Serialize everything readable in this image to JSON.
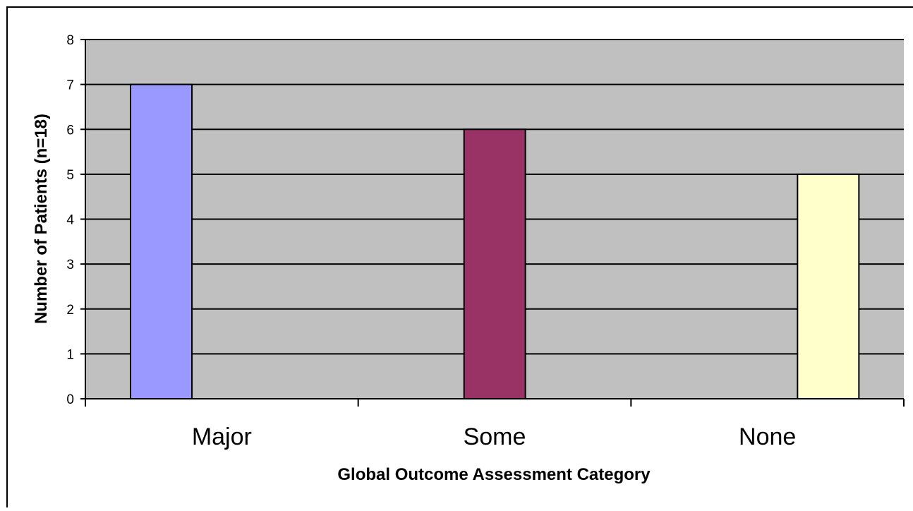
{
  "chart_data": {
    "type": "bar",
    "title": "",
    "xlabel": "Global Outcome Assessment Category",
    "ylabel": "Number of Patients (n=18)",
    "categories": [
      "Major",
      "Some",
      "None"
    ],
    "values": [
      7,
      6,
      5
    ],
    "bar_colors": [
      "#9999FF",
      "#993366",
      "#FFFFCC"
    ],
    "ylim": [
      0,
      8
    ],
    "yticks": [
      0,
      1,
      2,
      3,
      4,
      5,
      6,
      7,
      8
    ],
    "grid": true,
    "legend": "none",
    "plot_background": "#C0C0C0",
    "page_background": "#FFFFFF"
  }
}
